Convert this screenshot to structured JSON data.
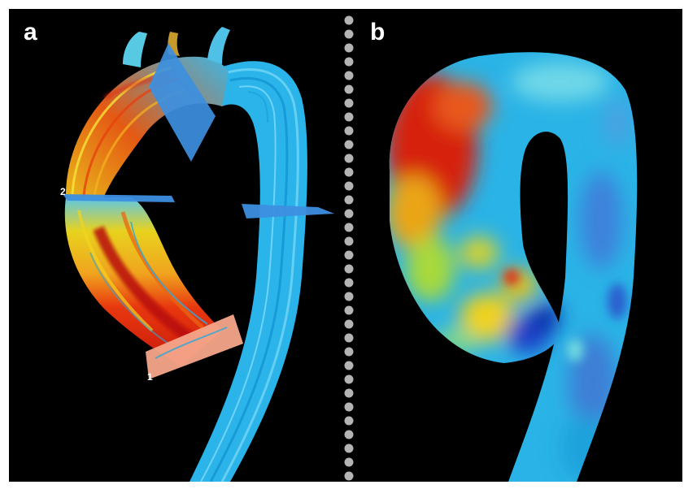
{
  "figure": {
    "panel_a": {
      "label": "a",
      "plane_labels": [
        "1",
        "2"
      ]
    },
    "panel_b": {
      "label": "b"
    },
    "colors": {
      "background": "#000000",
      "low": "#1fa9e8",
      "mid": "#f0e51e",
      "high": "#dc1e0f",
      "plane_blue": "#3d8fe0",
      "plane_inlet": "#f5a68a",
      "divider_dot": "#b4b4b4"
    }
  }
}
